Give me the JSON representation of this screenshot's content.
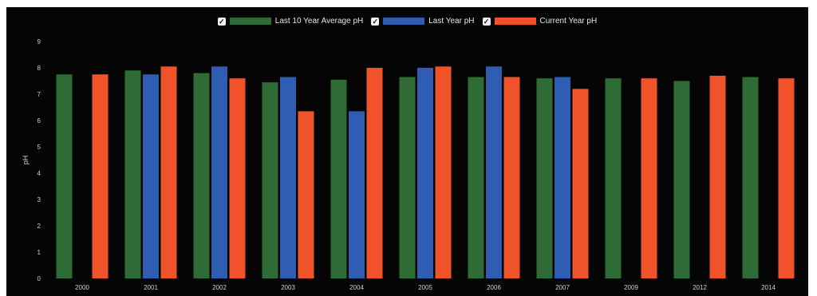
{
  "legend": {
    "items": [
      {
        "label": "Last 10 Year Average pH",
        "color": "#2f6b34",
        "checked": true
      },
      {
        "label": "Last Year pH",
        "color": "#2f5db3",
        "checked": true
      },
      {
        "label": "Current Year pH",
        "color": "#f0532a",
        "checked": true
      }
    ]
  },
  "chart_data": {
    "type": "bar",
    "title": "",
    "xlabel": "",
    "ylabel": "pH",
    "ylim": [
      0,
      9
    ],
    "yticks": [
      "0",
      "1",
      "2",
      "3",
      "4",
      "5",
      "6",
      "7",
      "8",
      "9"
    ],
    "grid": false,
    "legend_position": "top-center",
    "categories": [
      "2000",
      "2001",
      "2002",
      "2003",
      "2004",
      "2005",
      "2006",
      "2007",
      "2009",
      "2012",
      "2014"
    ],
    "series": [
      {
        "name": "Last 10 Year Average pH",
        "color": "#2f6b34",
        "values": [
          7.75,
          7.9,
          7.8,
          7.45,
          7.55,
          7.65,
          7.65,
          7.6,
          7.6,
          7.5,
          7.65
        ]
      },
      {
        "name": "Last Year pH",
        "color": "#2f5db3",
        "values": [
          null,
          7.75,
          8.05,
          7.65,
          6.35,
          8.0,
          8.05,
          7.65,
          null,
          null,
          null
        ]
      },
      {
        "name": "Current Year pH",
        "color": "#f0532a",
        "values": [
          7.75,
          8.05,
          7.6,
          6.35,
          8.0,
          8.05,
          7.65,
          7.2,
          7.6,
          7.7,
          7.6
        ]
      }
    ]
  }
}
